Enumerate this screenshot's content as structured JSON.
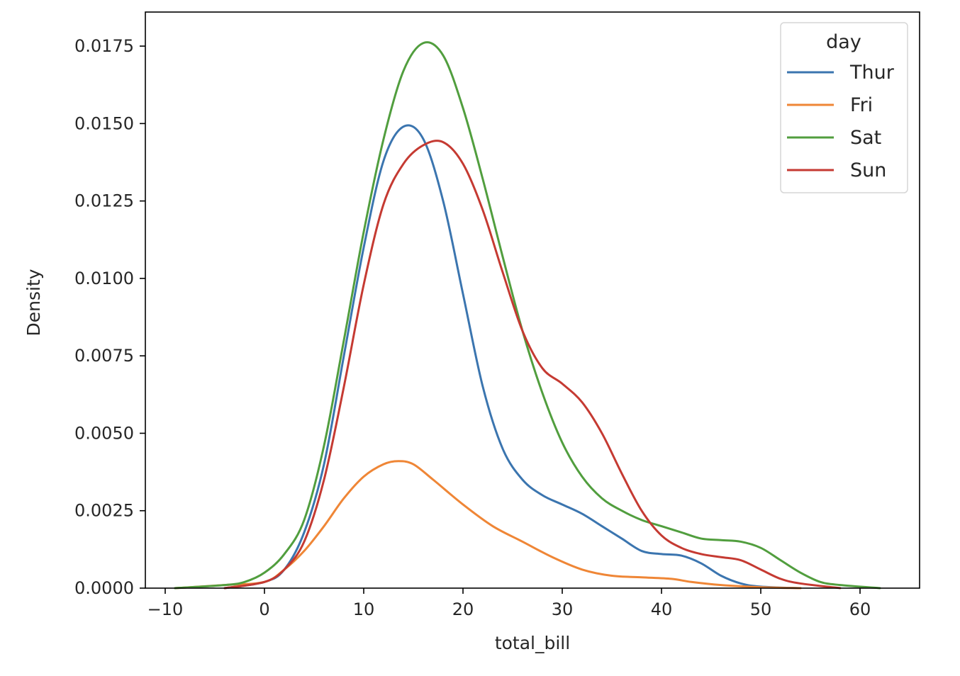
{
  "chart_data": {
    "type": "line",
    "xlabel": "total_bill",
    "ylabel": "Density",
    "xlim": [
      -12,
      66
    ],
    "ylim": [
      0,
      0.0186
    ],
    "xticks": [
      -10,
      0,
      10,
      20,
      30,
      40,
      50,
      60
    ],
    "xtick_labels": [
      "−10",
      "0",
      "10",
      "20",
      "30",
      "40",
      "50",
      "60"
    ],
    "yticks": [
      0,
      0.0025,
      0.005,
      0.0075,
      0.01,
      0.0125,
      0.015,
      0.0175
    ],
    "ytick_labels": [
      "0.0000",
      "0.0025",
      "0.0050",
      "0.0075",
      "0.0100",
      "0.0125",
      "0.0150",
      "0.0175"
    ],
    "grid": false,
    "legend": {
      "title": "day",
      "position": "top-right"
    },
    "series": [
      {
        "name": "Thur",
        "color": "#3b75af",
        "points": [
          [
            -4,
            0
          ],
          [
            0,
            0.0002
          ],
          [
            2,
            0.0006
          ],
          [
            4,
            0.0018
          ],
          [
            6,
            0.004
          ],
          [
            8,
            0.0075
          ],
          [
            10,
            0.011
          ],
          [
            12,
            0.0138
          ],
          [
            14,
            0.0149
          ],
          [
            16,
            0.0145
          ],
          [
            18,
            0.0125
          ],
          [
            20,
            0.0095
          ],
          [
            22,
            0.0065
          ],
          [
            24,
            0.0045
          ],
          [
            26,
            0.0035
          ],
          [
            28,
            0.003
          ],
          [
            30,
            0.0027
          ],
          [
            32,
            0.0024
          ],
          [
            34,
            0.002
          ],
          [
            36,
            0.0016
          ],
          [
            38,
            0.0012
          ],
          [
            40,
            0.0011
          ],
          [
            42,
            0.00105
          ],
          [
            44,
            0.0008
          ],
          [
            46,
            0.0004
          ],
          [
            48,
            0.00015
          ],
          [
            50,
            5e-05
          ],
          [
            54,
            0
          ]
        ]
      },
      {
        "name": "Fri",
        "color": "#ef8636",
        "points": [
          [
            -9,
            0
          ],
          [
            -4,
            0.0001
          ],
          [
            0,
            0.0002
          ],
          [
            2,
            0.0006
          ],
          [
            4,
            0.0012
          ],
          [
            6,
            0.002
          ],
          [
            8,
            0.0029
          ],
          [
            10,
            0.0036
          ],
          [
            12,
            0.004
          ],
          [
            13.5,
            0.0041
          ],
          [
            15,
            0.004
          ],
          [
            17,
            0.0035
          ],
          [
            20,
            0.0027
          ],
          [
            23,
            0.002
          ],
          [
            26,
            0.0015
          ],
          [
            29,
            0.001
          ],
          [
            32,
            0.0006
          ],
          [
            35,
            0.0004
          ],
          [
            38,
            0.00035
          ],
          [
            41,
            0.0003
          ],
          [
            43,
            0.0002
          ],
          [
            46,
            0.0001
          ],
          [
            50,
            3e-05
          ],
          [
            54,
            0
          ]
        ]
      },
      {
        "name": "Sat",
        "color": "#519e3e",
        "points": [
          [
            -9,
            0
          ],
          [
            -4,
            0.0001
          ],
          [
            -2,
            0.0002
          ],
          [
            0,
            0.0005
          ],
          [
            2,
            0.0011
          ],
          [
            4,
            0.0022
          ],
          [
            6,
            0.0046
          ],
          [
            8,
            0.008
          ],
          [
            10,
            0.0115
          ],
          [
            12,
            0.0145
          ],
          [
            14,
            0.0167
          ],
          [
            16,
            0.0176
          ],
          [
            18,
            0.0172
          ],
          [
            20,
            0.0155
          ],
          [
            22,
            0.0132
          ],
          [
            24,
            0.0107
          ],
          [
            26,
            0.0083
          ],
          [
            28,
            0.0063
          ],
          [
            30,
            0.0047
          ],
          [
            32,
            0.0036
          ],
          [
            34,
            0.0029
          ],
          [
            36,
            0.0025
          ],
          [
            38,
            0.0022
          ],
          [
            40,
            0.002
          ],
          [
            42,
            0.0018
          ],
          [
            44,
            0.0016
          ],
          [
            46,
            0.00155
          ],
          [
            48,
            0.0015
          ],
          [
            50,
            0.0013
          ],
          [
            52,
            0.0009
          ],
          [
            54,
            0.0005
          ],
          [
            56,
            0.0002
          ],
          [
            58,
            0.0001
          ],
          [
            62,
            0
          ]
        ]
      },
      {
        "name": "Sun",
        "color": "#c53a32",
        "points": [
          [
            -4,
            0
          ],
          [
            0,
            0.0002
          ],
          [
            2,
            0.0006
          ],
          [
            4,
            0.0015
          ],
          [
            6,
            0.0035
          ],
          [
            8,
            0.0065
          ],
          [
            10,
            0.0098
          ],
          [
            12,
            0.0124
          ],
          [
            14,
            0.0137
          ],
          [
            16,
            0.0143
          ],
          [
            18,
            0.0144
          ],
          [
            20,
            0.0137
          ],
          [
            22,
            0.0122
          ],
          [
            24,
            0.0102
          ],
          [
            26,
            0.0083
          ],
          [
            28,
            0.0071
          ],
          [
            30,
            0.0066
          ],
          [
            32,
            0.006
          ],
          [
            34,
            0.005
          ],
          [
            36,
            0.0037
          ],
          [
            38,
            0.0025
          ],
          [
            40,
            0.0017
          ],
          [
            42,
            0.0013
          ],
          [
            44,
            0.0011
          ],
          [
            46,
            0.001
          ],
          [
            48,
            0.0009
          ],
          [
            50,
            0.0006
          ],
          [
            52,
            0.0003
          ],
          [
            54,
            0.00015
          ],
          [
            58,
            0
          ]
        ]
      }
    ]
  }
}
